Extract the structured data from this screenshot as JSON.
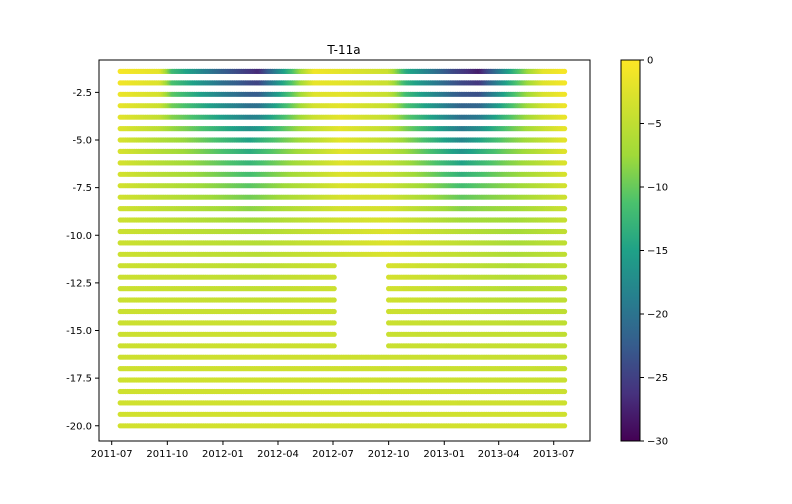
{
  "chart_data": {
    "type": "scatter",
    "title": "T-11a",
    "xlabel": "",
    "ylabel": "",
    "x_tick_labels": [
      "2011-07",
      "2011-10",
      "2012-01",
      "2012-04",
      "2012-07",
      "2012-10",
      "2013-01",
      "2013-04",
      "2013-07"
    ],
    "y_tick_labels": [
      "-2.5",
      "-5.0",
      "-7.5",
      "-10.0",
      "-12.5",
      "-15.0",
      "-17.5",
      "-20.0"
    ],
    "y_ticks": [
      -2.5,
      -5.0,
      -7.5,
      -10.0,
      -12.5,
      -15.0,
      -17.5,
      -20.0
    ],
    "xlim": [
      "2011-06-10",
      "2013-08-30"
    ],
    "ylim": [
      -20.8,
      -0.8
    ],
    "grid": false,
    "colormap": "viridis",
    "colorbar": {
      "range": [
        -30,
        0
      ],
      "ticks": [
        0,
        -5,
        -10,
        -15,
        -20,
        -25,
        -30
      ],
      "tick_labels": [
        "0",
        "−5",
        "−10",
        "−15",
        "−20",
        "−25",
        "−30"
      ]
    },
    "depths": [
      -1.4,
      -2.0,
      -2.6,
      -3.2,
      -3.8,
      -4.4,
      -5.0,
      -5.6,
      -6.2,
      -6.8,
      -7.4,
      -8.0,
      -8.6,
      -9.2,
      -9.8,
      -10.4,
      -11.0,
      -11.6,
      -12.2,
      -12.8,
      -13.4,
      -14.0,
      -14.6,
      -15.2,
      -15.8,
      -16.4,
      -17.0,
      -17.6,
      -18.2,
      -18.8,
      -19.4,
      -20.0
    ],
    "date_range": [
      "2011-07-15",
      "2013-07-20"
    ],
    "data_gaps": [
      {
        "start": "2012-07-05",
        "end": "2012-10-01",
        "depth_min": -15.8,
        "depth_max": -11.6
      }
    ],
    "temperature_profile": [
      {
        "depth": -1.4,
        "points": [
          [
            "2011-07-15",
            -0.5
          ],
          [
            "2011-09-20",
            -2
          ],
          [
            "2011-10-10",
            -12
          ],
          [
            "2012-01-01",
            -22
          ],
          [
            "2012-03-01",
            -27
          ],
          [
            "2012-05-01",
            -10
          ],
          [
            "2012-06-01",
            -1
          ],
          [
            "2012-10-01",
            -4
          ],
          [
            "2012-11-01",
            -14
          ],
          [
            "2013-01-15",
            -24
          ],
          [
            "2013-03-01",
            -28
          ],
          [
            "2013-05-01",
            -12
          ],
          [
            "2013-06-15",
            -2
          ],
          [
            "2013-07-20",
            -0.5
          ]
        ]
      },
      {
        "depth": -5.0,
        "points": [
          [
            "2011-07-15",
            -3
          ],
          [
            "2011-11-01",
            -8
          ],
          [
            "2012-02-15",
            -15
          ],
          [
            "2012-05-01",
            -8
          ],
          [
            "2012-07-15",
            -2
          ],
          [
            "2012-10-01",
            -5
          ],
          [
            "2013-02-01",
            -18
          ],
          [
            "2013-04-15",
            -10
          ],
          [
            "2013-07-20",
            -2
          ]
        ]
      },
      {
        "depth": -10.0,
        "points": [
          [
            "2011-07-15",
            -4
          ],
          [
            "2012-03-01",
            -6
          ],
          [
            "2012-10-01",
            -2.5
          ],
          [
            "2013-05-01",
            -7
          ],
          [
            "2013-07-20",
            -5
          ]
        ]
      },
      {
        "depth": -15.0,
        "points": [
          [
            "2011-07-15",
            -4
          ],
          [
            "2012-07-01",
            -4
          ],
          [
            "2013-07-20",
            -5
          ]
        ]
      },
      {
        "depth": -20.0,
        "points": [
          [
            "2011-07-15",
            -3.5
          ],
          [
            "2013-07-20",
            -3.5
          ]
        ]
      }
    ]
  }
}
